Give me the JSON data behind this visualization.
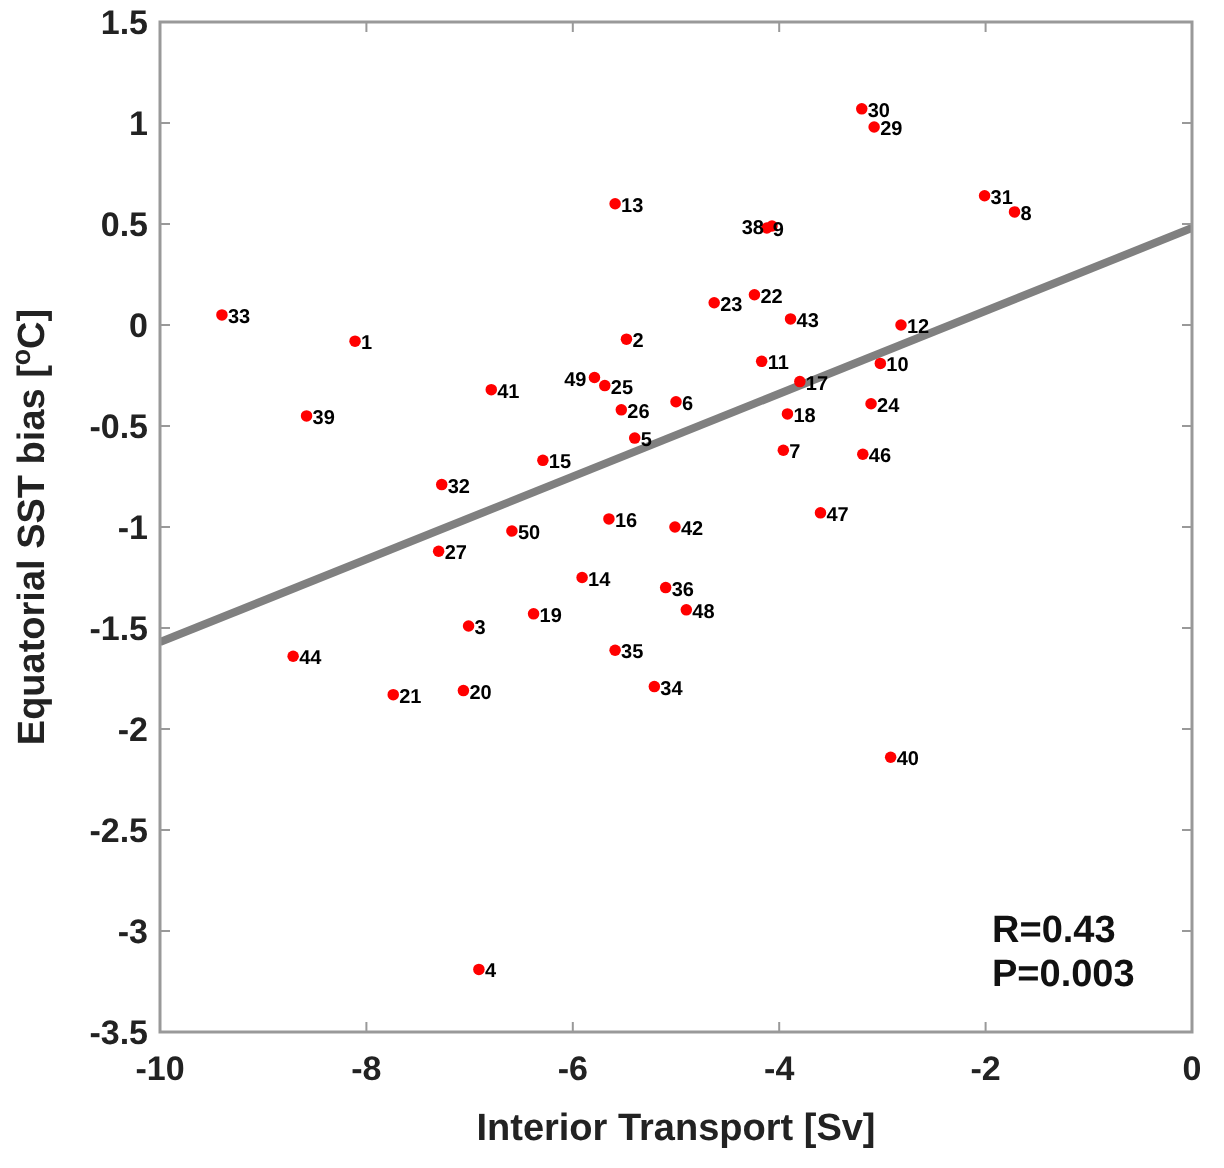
{
  "chart_data": {
    "type": "scatter",
    "xlabel": "Interior Transport [Sv]",
    "ylabel": "Equatorial SST bias [$^{o}$C]",
    "xlim": [
      -10,
      0
    ],
    "ylim": [
      -3.5,
      1.5
    ],
    "xticks": [
      -10,
      -8,
      -6,
      -4,
      -2,
      0
    ],
    "yticks": [
      -3.5,
      -3,
      -2.5,
      -2,
      -1.5,
      -1,
      -0.5,
      0,
      0.5,
      1,
      1.5
    ],
    "grid": false,
    "series": [
      {
        "marker": "circle",
        "color": "#ff0000",
        "x": [
          -8.11,
          -5.48,
          -7.01,
          -6.91,
          -5.4,
          -5.0,
          -3.96,
          -1.72,
          -4.12,
          -3.02,
          -4.17,
          -2.82,
          -5.59,
          -5.91,
          -6.29,
          -5.65,
          -3.8,
          -3.92,
          -6.38,
          -7.06,
          -7.74,
          -4.24,
          -4.63,
          -3.11,
          -5.69,
          -5.53,
          -7.3,
          -3.08,
          -3.2,
          -2.01,
          -7.27,
          -9.4,
          -5.21,
          -5.59,
          -5.1,
          -4.07,
          -8.58,
          -2.92,
          -6.79,
          -5.01,
          -3.89,
          -8.71,
          -3.19,
          -3.6,
          -4.9,
          -5.79,
          -6.59
        ],
        "values": [
          -0.08,
          -0.07,
          -1.49,
          -3.19,
          -0.56,
          -0.38,
          -0.62,
          0.56,
          0.48,
          -0.19,
          -0.18,
          0.0,
          0.6,
          -1.25,
          -0.67,
          -0.96,
          -0.28,
          -0.44,
          -1.43,
          -1.81,
          -1.83,
          0.15,
          0.11,
          -0.39,
          -0.3,
          -0.42,
          -1.12,
          0.98,
          1.07,
          0.64,
          -0.79,
          0.05,
          -1.79,
          -1.61,
          -1.3,
          0.49,
          -0.45,
          -2.14,
          -0.32,
          -1.0,
          0.03,
          -1.64,
          -0.64,
          -0.93,
          -1.41,
          -0.26,
          -1.02
        ]
      },
      {
        "type": "line",
        "color": "#808080",
        "x": [
          -10,
          0
        ],
        "values": [
          -1.57,
          0.48
        ]
      }
    ],
    "annotations": [
      "R=0.43",
      "P=0.003",
      {
        "text": "1",
        "x": -8.11,
        "y": -0.08
      },
      {
        "text": "2",
        "x": -5.48,
        "y": -0.07
      },
      {
        "text": "3",
        "x": -7.01,
        "y": -1.49
      },
      {
        "text": "4",
        "x": -6.91,
        "y": -3.19
      },
      {
        "text": "5",
        "x": -5.4,
        "y": -0.56
      },
      {
        "text": "6",
        "x": -5.0,
        "y": -0.38
      },
      {
        "text": "7",
        "x": -3.96,
        "y": -0.62
      },
      {
        "text": "8",
        "x": -1.72,
        "y": 0.56
      },
      {
        "text": "9",
        "x": -4.12,
        "y": 0.48
      },
      {
        "text": "10",
        "x": -3.02,
        "y": -0.19
      },
      {
        "text": "11",
        "x": -4.17,
        "y": -0.18
      },
      {
        "text": "12",
        "x": -2.82,
        "y": 0.0
      },
      {
        "text": "13",
        "x": -5.59,
        "y": 0.6
      },
      {
        "text": "14",
        "x": -5.91,
        "y": -1.25
      },
      {
        "text": "15",
        "x": -6.29,
        "y": -0.67
      },
      {
        "text": "16",
        "x": -5.65,
        "y": -0.96
      },
      {
        "text": "17",
        "x": -3.8,
        "y": -0.28
      },
      {
        "text": "18",
        "x": -3.92,
        "y": -0.44
      },
      {
        "text": "19",
        "x": -6.38,
        "y": -1.43
      },
      {
        "text": "20",
        "x": -7.06,
        "y": -1.81
      },
      {
        "text": "21",
        "x": -7.74,
        "y": -1.83
      },
      {
        "text": "22",
        "x": -4.24,
        "y": 0.15
      },
      {
        "text": "23",
        "x": -4.63,
        "y": 0.11
      },
      {
        "text": "24",
        "x": -3.11,
        "y": -0.39
      },
      {
        "text": "25",
        "x": -5.69,
        "y": -0.3
      },
      {
        "text": "26",
        "x": -5.53,
        "y": -0.42
      },
      {
        "text": "27",
        "x": -7.3,
        "y": -1.12
      },
      {
        "text": "29",
        "x": -3.08,
        "y": 0.98
      },
      {
        "text": "30",
        "x": -3.2,
        "y": 1.07
      },
      {
        "text": "31",
        "x": -2.01,
        "y": 0.64
      },
      {
        "text": "32",
        "x": -7.27,
        "y": -0.79
      },
      {
        "text": "33",
        "x": -9.4,
        "y": 0.05
      },
      {
        "text": "34",
        "x": -5.21,
        "y": -1.79
      },
      {
        "text": "35",
        "x": -5.59,
        "y": -1.61
      },
      {
        "text": "36",
        "x": -5.1,
        "y": -1.3
      },
      {
        "text": "38",
        "x": -4.07,
        "y": 0.49
      },
      {
        "text": "39",
        "x": -8.58,
        "y": -0.45
      },
      {
        "text": "40",
        "x": -2.92,
        "y": -2.14
      },
      {
        "text": "41",
        "x": -6.79,
        "y": -0.32
      },
      {
        "text": "42",
        "x": -5.01,
        "y": -1.0
      },
      {
        "text": "43",
        "x": -3.89,
        "y": 0.03
      },
      {
        "text": "44",
        "x": -8.71,
        "y": -1.64
      },
      {
        "text": "46",
        "x": -3.19,
        "y": -0.64
      },
      {
        "text": "47",
        "x": -3.6,
        "y": -0.93
      },
      {
        "text": "48",
        "x": -4.9,
        "y": -1.41
      },
      {
        "text": "49",
        "x": -5.79,
        "y": -0.26
      },
      {
        "text": "50",
        "x": -6.59,
        "y": -1.02
      }
    ]
  }
}
